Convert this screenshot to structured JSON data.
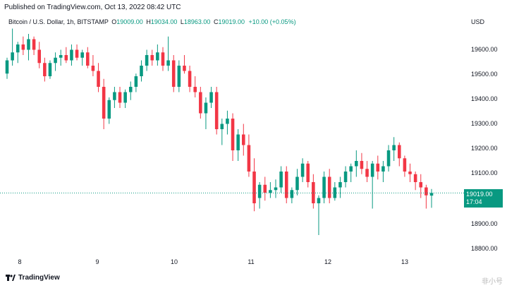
{
  "header": {
    "published": "Published on TradingView.com, Oct 13, 2022 08:42 UTC"
  },
  "legend": {
    "symbol": "Bitcoin / U.S. Dollar, 1h, BITSTAMP",
    "o_key": "O",
    "o": "19009.00",
    "h_key": "H",
    "h": "19034.00",
    "l_key": "L",
    "l": "18963.00",
    "c_key": "C",
    "c": "19019.00",
    "change": "+10.00 (+0.05%)"
  },
  "yaxis": {
    "currency": "USD",
    "ticks": [
      "19600.00",
      "19500.00",
      "19400.00",
      "19300.00",
      "19200.00",
      "19100.00",
      "18900.00",
      "18800.00"
    ]
  },
  "price_tag": {
    "price": "19019.00",
    "countdown": "17:04"
  },
  "xaxis": {
    "ticks": [
      "8",
      "9",
      "10",
      "11",
      "12",
      "13"
    ]
  },
  "footer": {
    "logo": "TradingView",
    "watermark": "非小号"
  },
  "colors": {
    "up": "#089981",
    "down": "#f23645",
    "accent": "#089981"
  },
  "chart_data": {
    "type": "candlestick",
    "ylim": [
      18780,
      19700
    ],
    "last_price": 19019,
    "candles": [
      [
        19470,
        19530,
        19450,
        19520
      ],
      [
        19520,
        19640,
        19500,
        19550
      ],
      [
        19550,
        19590,
        19510,
        19580
      ],
      [
        19580,
        19610,
        19540,
        19560
      ],
      [
        19560,
        19620,
        19520,
        19600
      ],
      [
        19600,
        19610,
        19540,
        19560
      ],
      [
        19560,
        19590,
        19490,
        19510
      ],
      [
        19510,
        19530,
        19440,
        19460
      ],
      [
        19460,
        19520,
        19450,
        19510
      ],
      [
        19510,
        19550,
        19480,
        19530
      ],
      [
        19530,
        19560,
        19500,
        19540
      ],
      [
        19540,
        19570,
        19510,
        19520
      ],
      [
        19520,
        19580,
        19500,
        19560
      ],
      [
        19560,
        19580,
        19520,
        19530
      ],
      [
        19530,
        19560,
        19500,
        19550
      ],
      [
        19550,
        19570,
        19490,
        19500
      ],
      [
        19500,
        19540,
        19460,
        19480
      ],
      [
        19480,
        19510,
        19400,
        19420
      ],
      [
        19420,
        19450,
        19260,
        19300
      ],
      [
        19300,
        19380,
        19280,
        19370
      ],
      [
        19370,
        19420,
        19340,
        19400
      ],
      [
        19400,
        19420,
        19340,
        19360
      ],
      [
        19360,
        19410,
        19340,
        19400
      ],
      [
        19400,
        19440,
        19370,
        19420
      ],
      [
        19420,
        19470,
        19400,
        19460
      ],
      [
        19460,
        19520,
        19440,
        19500
      ],
      [
        19500,
        19560,
        19480,
        19540
      ],
      [
        19540,
        19560,
        19500,
        19520
      ],
      [
        19520,
        19580,
        19500,
        19550
      ],
      [
        19550,
        19570,
        19480,
        19500
      ],
      [
        19500,
        19610,
        19480,
        19520
      ],
      [
        19520,
        19540,
        19400,
        19420
      ],
      [
        19420,
        19520,
        19400,
        19500
      ],
      [
        19500,
        19540,
        19470,
        19480
      ],
      [
        19480,
        19500,
        19400,
        19420
      ],
      [
        19420,
        19460,
        19380,
        19400
      ],
      [
        19400,
        19420,
        19300,
        19320
      ],
      [
        19320,
        19380,
        19260,
        19360
      ],
      [
        19360,
        19420,
        19340,
        19400
      ],
      [
        19400,
        19420,
        19240,
        19260
      ],
      [
        19260,
        19300,
        19200,
        19280
      ],
      [
        19280,
        19330,
        19240,
        19300
      ],
      [
        19300,
        19320,
        19140,
        19180
      ],
      [
        19180,
        19260,
        19140,
        19240
      ],
      [
        19240,
        19280,
        19160,
        19200
      ],
      [
        19200,
        19240,
        19080,
        19100
      ],
      [
        19100,
        19150,
        18950,
        18980
      ],
      [
        19000,
        19060,
        18960,
        19050
      ],
      [
        19050,
        19080,
        18990,
        19020
      ],
      [
        19020,
        19060,
        19000,
        19030
      ],
      [
        19030,
        19070,
        19000,
        19040
      ],
      [
        19040,
        19120,
        19020,
        19100
      ],
      [
        19100,
        19120,
        18980,
        19000
      ],
      [
        19000,
        19040,
        18980,
        19030
      ],
      [
        19030,
        19110,
        19010,
        19080
      ],
      [
        19080,
        19150,
        19060,
        19130
      ],
      [
        19130,
        19140,
        19040,
        19060
      ],
      [
        19060,
        19090,
        18960,
        18980
      ],
      [
        18980,
        19010,
        18860,
        19000
      ],
      [
        19000,
        19100,
        18980,
        19080
      ],
      [
        19080,
        19110,
        18980,
        19000
      ],
      [
        19000,
        19060,
        18990,
        19040
      ],
      [
        19040,
        19080,
        19000,
        19060
      ],
      [
        19060,
        19120,
        19040,
        19100
      ],
      [
        19100,
        19130,
        19060,
        19120
      ],
      [
        19120,
        19180,
        19080,
        19140
      ],
      [
        19140,
        19170,
        19090,
        19110
      ],
      [
        19110,
        19140,
        19060,
        19080
      ],
      [
        19080,
        19140,
        18960,
        19130
      ],
      [
        19130,
        19160,
        19070,
        19100
      ],
      [
        19100,
        19140,
        19060,
        19120
      ],
      [
        19120,
        19200,
        19100,
        19180
      ],
      [
        19180,
        19230,
        19140,
        19200
      ],
      [
        19200,
        19210,
        19120,
        19150
      ],
      [
        19150,
        19160,
        19080,
        19100
      ],
      [
        19100,
        19130,
        19060,
        19090
      ],
      [
        19090,
        19100,
        19030,
        19060
      ],
      [
        19060,
        19090,
        19000,
        19040
      ],
      [
        19040,
        19050,
        18960,
        19010
      ],
      [
        19009,
        19034,
        18963,
        19019
      ]
    ]
  }
}
